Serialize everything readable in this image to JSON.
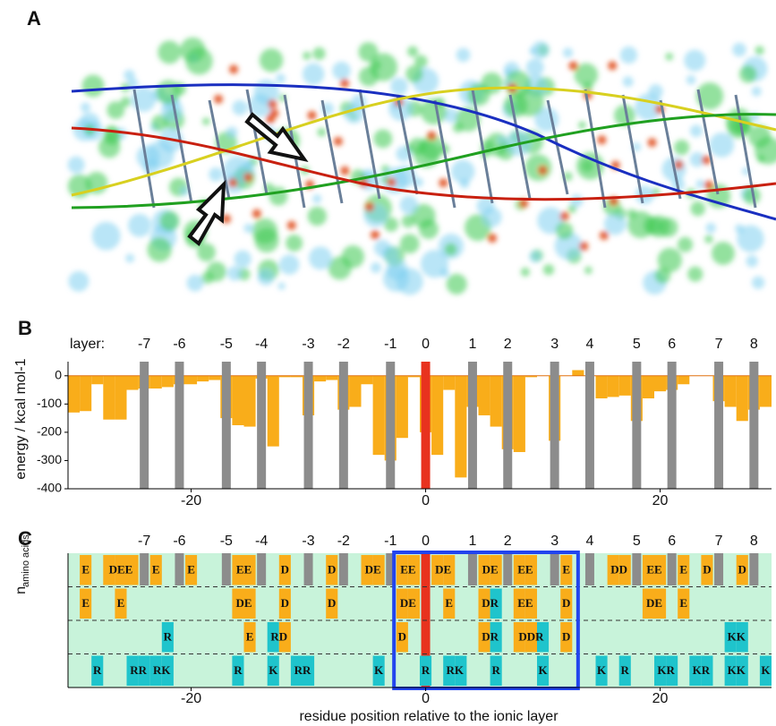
{
  "panels": [
    "A",
    "B",
    "C"
  ],
  "chart_data": [
    {
      "type": "bar",
      "layer_title": "layer:",
      "layer_numbers": [
        -7,
        -6,
        -5,
        -4,
        -3,
        -2,
        -1,
        0,
        1,
        2,
        3,
        4,
        5,
        6,
        7,
        8
      ],
      "layer_positions": [
        -24,
        -21,
        -17,
        -14,
        -10,
        -7,
        -3,
        0,
        4,
        7,
        11,
        14,
        18,
        21,
        25,
        28
      ],
      "layer_color": "#8c8c8c",
      "ionic_layer_color": "#e8321e",
      "ylabel": "energy / kcal mol-1",
      "x": [
        -30,
        -29,
        -28,
        -27,
        -26,
        -25,
        -24,
        -23,
        -22,
        -21,
        -20,
        -19,
        -18,
        -17,
        -16,
        -15,
        -14,
        -13,
        -12,
        -11,
        -10,
        -9,
        -8,
        -7,
        -6,
        -5,
        -4,
        -3,
        -2,
        -1,
        0,
        1,
        2,
        3,
        4,
        5,
        6,
        7,
        8,
        9,
        10,
        11,
        12,
        13,
        14,
        15,
        16,
        17,
        18,
        19,
        20,
        21,
        22,
        23,
        24,
        25,
        26,
        27,
        28,
        29
      ],
      "values": [
        -130,
        -125,
        -30,
        -155,
        -155,
        -50,
        -45,
        -45,
        -40,
        -30,
        -30,
        -20,
        -15,
        -150,
        -175,
        -180,
        -10,
        -250,
        -5,
        -5,
        -140,
        -20,
        -15,
        -120,
        -110,
        -30,
        -280,
        -300,
        -220,
        -5,
        -200,
        -280,
        -50,
        -360,
        -110,
        -140,
        -180,
        -260,
        -270,
        -5,
        0,
        -230,
        0,
        20,
        0,
        -80,
        -75,
        -70,
        -160,
        -80,
        -55,
        -50,
        -30,
        0,
        0,
        -90,
        -110,
        -160,
        -120,
        -110
      ],
      "color": "#f9ad1a",
      "xlim": [
        -30.5,
        29.5
      ],
      "xticks": [
        -20,
        0,
        20
      ],
      "ylim": [
        -400,
        50
      ],
      "yticks": [
        0,
        -100,
        -200,
        -300,
        -400
      ]
    },
    {
      "type": "residue-map",
      "xlabel": "residue position relative to the ionic layer",
      "ylabel": "n",
      "ylabel_sub": "amino acids",
      "xlim": [
        -30.5,
        29.5
      ],
      "xticks": [
        -20,
        0,
        20
      ],
      "acid_color": "#f9ad1a",
      "base_color": "#1fc4cc",
      "background_color": "#c8f3da",
      "box_color": "#2244ee",
      "box": [
        -2.7,
        13
      ],
      "rows": [
        [
          {
            "x": -29,
            "label": "E"
          },
          {
            "x": -27,
            "label": "DEE"
          },
          {
            "x": -23,
            "label": "E"
          },
          {
            "x": -20,
            "label": "E"
          },
          {
            "x": -16,
            "label": "EE"
          },
          {
            "x": -12,
            "label": "D"
          },
          {
            "x": -8,
            "label": "D"
          },
          {
            "x": -5,
            "label": "DE"
          },
          {
            "x": -2,
            "label": "EE"
          },
          {
            "x": 1,
            "label": "DE"
          },
          {
            "x": 5,
            "label": "DE"
          },
          {
            "x": 8,
            "label": "EE"
          },
          {
            "x": 12,
            "label": "E"
          },
          {
            "x": 16,
            "label": "DD"
          },
          {
            "x": 19,
            "label": "EE"
          },
          {
            "x": 22,
            "label": "E"
          },
          {
            "x": 24,
            "label": "D"
          },
          {
            "x": 27,
            "label": "D"
          }
        ],
        [
          {
            "x": -29,
            "label": "E"
          },
          {
            "x": -26,
            "label": "E"
          },
          {
            "x": -16,
            "label": "DE"
          },
          {
            "x": -12,
            "label": "D"
          },
          {
            "x": -8,
            "label": "D"
          },
          {
            "x": -2,
            "label": "DE"
          },
          {
            "x": 2,
            "label": "E"
          },
          {
            "x": 5,
            "label": "DR"
          },
          {
            "x": 8,
            "label": "EE"
          },
          {
            "x": 12,
            "label": "D"
          },
          {
            "x": 19,
            "label": "DE"
          },
          {
            "x": 22,
            "label": "E"
          }
        ],
        [
          {
            "x": -22,
            "label": "R"
          },
          {
            "x": -15,
            "label": "E"
          },
          {
            "x": -13,
            "label": "RD"
          },
          {
            "x": -2,
            "label": "D"
          },
          {
            "x": 5,
            "label": "DR"
          },
          {
            "x": 8,
            "label": "DDR"
          },
          {
            "x": 12,
            "label": "D"
          },
          {
            "x": 26,
            "label": "KK"
          }
        ],
        [
          {
            "x": -28,
            "label": "R"
          },
          {
            "x": -25,
            "label": "RR"
          },
          {
            "x": -23,
            "label": "RK"
          },
          {
            "x": -16,
            "label": "R"
          },
          {
            "x": -13,
            "label": "K"
          },
          {
            "x": -11,
            "label": "RR"
          },
          {
            "x": -4,
            "label": "K"
          },
          {
            "x": 0,
            "label": "R"
          },
          {
            "x": 2,
            "label": "RK"
          },
          {
            "x": 6,
            "label": "R"
          },
          {
            "x": 10,
            "label": "K"
          },
          {
            "x": 15,
            "label": "K"
          },
          {
            "x": 17,
            "label": "R"
          },
          {
            "x": 20,
            "label": "KR"
          },
          {
            "x": 23,
            "label": "KR"
          },
          {
            "x": 26,
            "label": "KK"
          },
          {
            "x": 29,
            "label": "K"
          }
        ]
      ]
    }
  ]
}
